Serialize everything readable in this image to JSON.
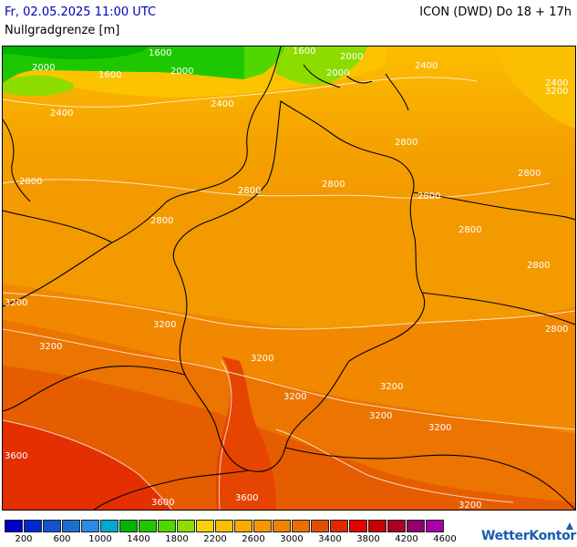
{
  "header": {
    "date": "Fr, 02.05.2025 11:00 UTC",
    "model": "ICON (DWD) Do 18 + 17h",
    "parameter": "Nullgradgrenze [m]"
  },
  "legend": {
    "colors": [
      "#0000c8",
      "#0028d2",
      "#1450d2",
      "#1e6ed2",
      "#288ce6",
      "#00aacd",
      "#00b400",
      "#1ec800",
      "#50d700",
      "#8cdc00",
      "#fad200",
      "#fcbe00",
      "#fcaa00",
      "#fa9600",
      "#f08200",
      "#eb6e00",
      "#e15000",
      "#e62800",
      "#e60000",
      "#c80000",
      "#aa0028",
      "#96006e",
      "#aa00aa"
    ],
    "labels": [
      "200",
      "600",
      "1000",
      "1400",
      "1800",
      "2200",
      "2600",
      "3000",
      "3400",
      "3800",
      "4200",
      "4600"
    ]
  },
  "map_labels": [
    {
      "text": "1600"
    },
    {
      "text": "1600"
    },
    {
      "text": "1600"
    },
    {
      "text": "2000"
    },
    {
      "text": "2000"
    },
    {
      "text": "2000"
    },
    {
      "text": "2000"
    },
    {
      "text": "2400"
    },
    {
      "text": "2400"
    },
    {
      "text": "2400"
    },
    {
      "text": "2400"
    },
    {
      "text": "2800"
    },
    {
      "text": "2800"
    },
    {
      "text": "2800"
    },
    {
      "text": "2800"
    },
    {
      "text": "2800"
    },
    {
      "text": "2800"
    },
    {
      "text": "2800"
    },
    {
      "text": "2800"
    },
    {
      "text": "2800"
    },
    {
      "text": "2800"
    },
    {
      "text": "3200"
    },
    {
      "text": "3200"
    },
    {
      "text": "3200"
    },
    {
      "text": "3200"
    },
    {
      "text": "3200"
    },
    {
      "text": "3200"
    },
    {
      "text": "3200"
    },
    {
      "text": "3200"
    },
    {
      "text": "3200"
    },
    {
      "text": "3600"
    },
    {
      "text": "3600"
    },
    {
      "text": "3600"
    },
    {
      "text": "3200"
    }
  ],
  "brand": {
    "name": "WetterKontor"
  }
}
